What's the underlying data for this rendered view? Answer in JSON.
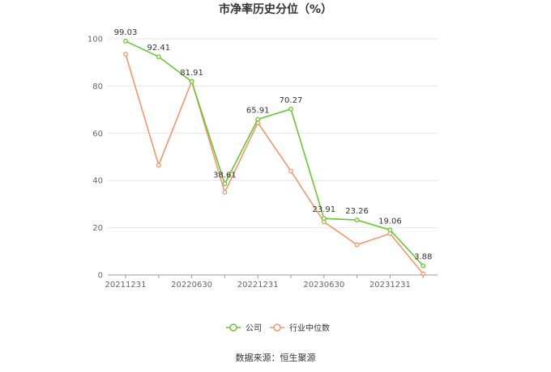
{
  "chart_data": {
    "type": "line",
    "title": "市净率历史分位（%）",
    "x": [
      "20211231",
      "20220331",
      "20220630",
      "20220930",
      "20221231",
      "20230331",
      "20230630",
      "20230930",
      "20231231",
      "20240331"
    ],
    "xtick_labels": [
      "20211231",
      "20220630",
      "20221231",
      "20230630",
      "20231231"
    ],
    "ylim": [
      0,
      100
    ],
    "yticks": [
      0,
      20,
      40,
      60,
      80,
      100
    ],
    "grid": true,
    "legend_position": "bottom",
    "series": [
      {
        "name": "公司",
        "color": "#6ac531",
        "values": [
          99.03,
          92.41,
          81.91,
          38.61,
          65.91,
          70.27,
          23.91,
          23.26,
          19.06,
          3.88
        ],
        "labels": [
          "99.03",
          "92.41",
          "81.91",
          "38.61",
          "65.91",
          "70.27",
          "23.91",
          "23.26",
          "19.06",
          "3.88"
        ]
      },
      {
        "name": "行业中位数",
        "color": "#f4966a",
        "values": [
          93.5,
          46.5,
          82.0,
          35.0,
          64.5,
          44.0,
          22.5,
          12.8,
          17.5,
          0.5
        ]
      }
    ],
    "source": "数据来源：恒生聚源"
  }
}
